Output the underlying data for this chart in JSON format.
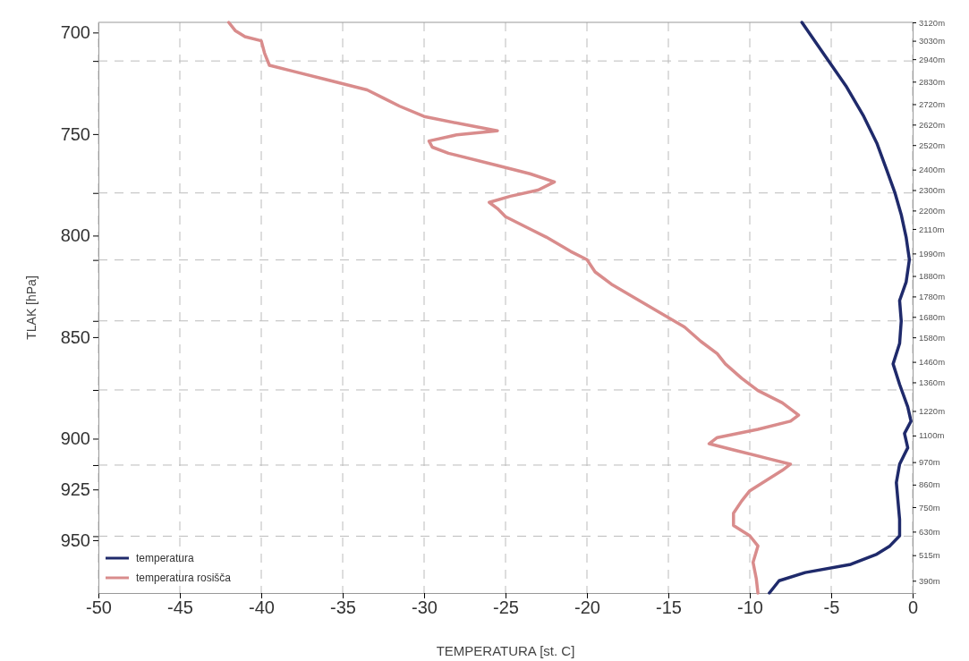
{
  "chart_data": {
    "type": "line",
    "xlabel": "TEMPERATURA [st. C]",
    "y2label": "TLAK [hPa]",
    "xlim": [
      -50,
      0
    ],
    "xticks": [
      -50,
      -45,
      -40,
      -35,
      -30,
      -25,
      -20,
      -15,
      -10,
      -5,
      0
    ],
    "ylim": [
      330,
      3120
    ],
    "yticks": [
      {
        "value": 3120,
        "label": "3120m"
      },
      {
        "value": 3030,
        "label": "3030m"
      },
      {
        "value": 2940,
        "label": "2940m"
      },
      {
        "value": 2830,
        "label": "2830m"
      },
      {
        "value": 2720,
        "label": "2720m"
      },
      {
        "value": 2620,
        "label": "2620m"
      },
      {
        "value": 2520,
        "label": "2520m"
      },
      {
        "value": 2400,
        "label": "2400m"
      },
      {
        "value": 2300,
        "label": "2300m"
      },
      {
        "value": 2200,
        "label": "2200m"
      },
      {
        "value": 2110,
        "label": "2110m"
      },
      {
        "value": 1990,
        "label": "1990m"
      },
      {
        "value": 1880,
        "label": "1880m"
      },
      {
        "value": 1780,
        "label": "1780m"
      },
      {
        "value": 1680,
        "label": "1680m"
      },
      {
        "value": 1580,
        "label": "1580m"
      },
      {
        "value": 1460,
        "label": "1460m"
      },
      {
        "value": 1360,
        "label": "1360m"
      },
      {
        "value": 1220,
        "label": "1220m"
      },
      {
        "value": 1100,
        "label": "1100m"
      },
      {
        "value": 970,
        "label": "970m"
      },
      {
        "value": 860,
        "label": "860m"
      },
      {
        "value": 750,
        "label": "750m"
      },
      {
        "value": 630,
        "label": "630m"
      },
      {
        "value": 515,
        "label": "515m"
      },
      {
        "value": 390,
        "label": "390m"
      }
    ],
    "y2lim": [
      976,
      695
    ],
    "y2ticks": [
      700,
      750,
      800,
      850,
      900,
      925,
      950,
      {
        "value": 714,
        "label": null
      },
      {
        "value": 779,
        "label": null
      },
      {
        "value": 812,
        "label": null
      },
      {
        "value": 842,
        "label": null
      },
      {
        "value": 876,
        "label": null
      },
      {
        "value": 913,
        "label": null
      },
      {
        "value": 948,
        "label": null
      }
    ],
    "grid": true,
    "legend": "bottom left",
    "line_style": "solid",
    "marker": "none",
    "series": [
      {
        "name": "temperatura",
        "color": "#1f2a6b",
        "x": [
          -6.8,
          -5.5,
          -4.1,
          -3.0,
          -2.2,
          -1.6,
          -1.1,
          -0.7,
          -0.4,
          -0.2,
          -0.4,
          -0.8,
          -0.7,
          -0.8,
          -1.2,
          -0.8,
          -0.3,
          -0.1,
          -0.5,
          -0.3,
          -0.8,
          -1.0,
          -0.9,
          -0.8,
          -0.8,
          -1.4,
          -2.2,
          -3.8,
          -6.6,
          -8.2,
          -8.8
        ],
        "values": [
          3120,
          2970,
          2810,
          2660,
          2530,
          2400,
          2290,
          2180,
          2070,
          1960,
          1850,
          1760,
          1660,
          1550,
          1450,
          1350,
          1240,
          1170,
          1110,
          1040,
          960,
          870,
          780,
          690,
          610,
          560,
          520,
          470,
          430,
          390,
          330
        ]
      },
      {
        "name": "temperatura rosišča",
        "color": "#d98c8c",
        "x": [
          -42.0,
          -41.6,
          -41.0,
          -40.0,
          -39.8,
          -39.5,
          -38.0,
          -36.0,
          -33.5,
          -32.5,
          -31.5,
          -30.0,
          -27.5,
          -25.5,
          -28.0,
          -29.7,
          -29.5,
          -28.5,
          -25.5,
          -23.5,
          -22.0,
          -23.0,
          -24.7,
          -26.0,
          -25.5,
          -25.0,
          -23.5,
          -22.5,
          -21.0,
          -20.0,
          -19.5,
          -18.5,
          -17.0,
          -15.5,
          -14.0,
          -13.0,
          -12.0,
          -11.5,
          -10.5,
          -9.5,
          -8.0,
          -7.0,
          -7.5,
          -9.5,
          -12.0,
          -12.5,
          -11.0,
          -9.0,
          -7.5,
          -8.0,
          -9.0,
          -10.0,
          -10.5,
          -11.0,
          -11.0,
          -10.0,
          -9.5,
          -9.8,
          -9.6,
          -9.5
        ],
        "values": [
          3120,
          3080,
          3050,
          3030,
          2970,
          2910,
          2880,
          2840,
          2790,
          2750,
          2710,
          2660,
          2620,
          2590,
          2570,
          2540,
          2510,
          2480,
          2420,
          2380,
          2340,
          2300,
          2270,
          2240,
          2210,
          2170,
          2110,
          2070,
          2000,
          1960,
          1900,
          1840,
          1770,
          1700,
          1630,
          1560,
          1500,
          1450,
          1380,
          1320,
          1260,
          1200,
          1170,
          1130,
          1090,
          1060,
          1030,
          990,
          960,
          930,
          880,
          830,
          780,
          720,
          660,
          610,
          560,
          480,
          400,
          330
        ]
      }
    ]
  }
}
